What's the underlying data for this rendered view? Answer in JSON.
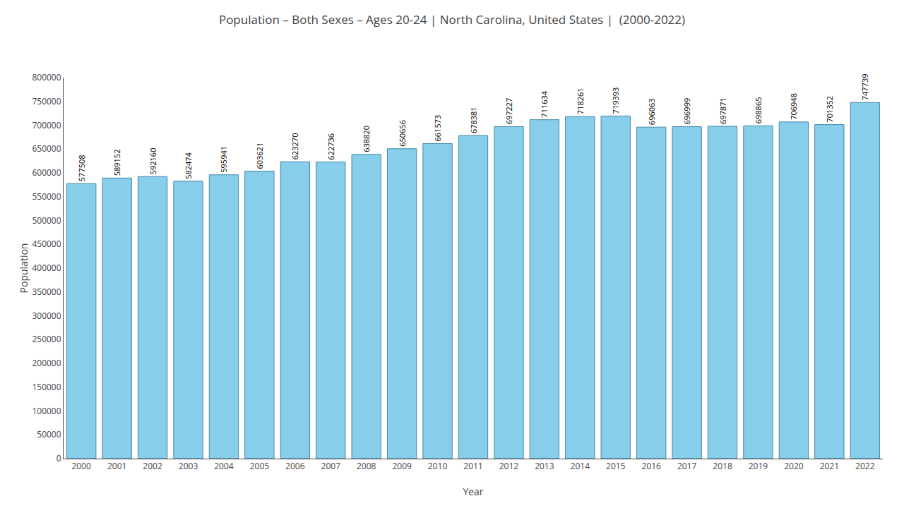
{
  "chart_data": {
    "type": "bar",
    "title": "Population – Both Sexes – Ages 20-24 | North Carolina, United States |  (2000-2022)",
    "xlabel": "Year",
    "ylabel": "Population",
    "categories": [
      "2000",
      "2001",
      "2002",
      "2003",
      "2004",
      "2005",
      "2006",
      "2007",
      "2008",
      "2009",
      "2010",
      "2011",
      "2012",
      "2013",
      "2014",
      "2015",
      "2016",
      "2017",
      "2018",
      "2019",
      "2020",
      "2021",
      "2022"
    ],
    "values": [
      577508,
      589152,
      592160,
      582474,
      595941,
      603621,
      623270,
      622736,
      638820,
      650656,
      661573,
      678381,
      697227,
      711634,
      718261,
      719393,
      696063,
      696999,
      697871,
      698865,
      706948,
      701352,
      747739
    ],
    "color": "#87CEEB",
    "ylim": [
      0,
      800000
    ],
    "yticks": [
      0,
      50000,
      100000,
      150000,
      200000,
      250000,
      300000,
      350000,
      400000,
      450000,
      500000,
      550000,
      600000,
      650000,
      700000,
      750000,
      800000
    ],
    "grid": false,
    "data_labels": true
  }
}
